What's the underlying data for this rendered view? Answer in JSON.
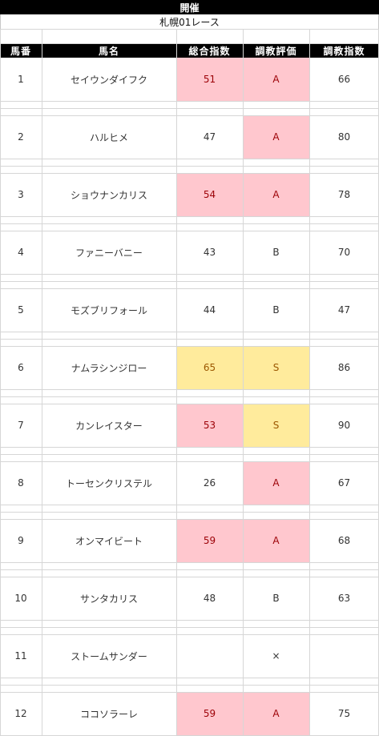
{
  "header": {
    "title": "開催",
    "subtitle": "札幌01レース"
  },
  "columns": [
    "馬番",
    "馬名",
    "総合指数",
    "調教評価",
    "調教指数"
  ],
  "highlight_colors": {
    "pink": "#ffc7ce",
    "yellow": "#ffeb9c"
  },
  "rows": [
    {
      "no": "1",
      "name": "セイウンダイフク",
      "total": "51",
      "eval": "A",
      "train": "66",
      "total_hl": "pink",
      "eval_hl": "pink"
    },
    {
      "no": "2",
      "name": "ハルヒメ",
      "total": "47",
      "eval": "A",
      "train": "80",
      "total_hl": "",
      "eval_hl": "pink"
    },
    {
      "no": "3",
      "name": "ショウナンカリス",
      "total": "54",
      "eval": "A",
      "train": "78",
      "total_hl": "pink",
      "eval_hl": "pink"
    },
    {
      "no": "4",
      "name": "ファニーバニー",
      "total": "43",
      "eval": "B",
      "train": "70",
      "total_hl": "",
      "eval_hl": ""
    },
    {
      "no": "5",
      "name": "モズブリフォール",
      "total": "44",
      "eval": "B",
      "train": "47",
      "total_hl": "",
      "eval_hl": ""
    },
    {
      "no": "6",
      "name": "ナムラシンジロー",
      "total": "65",
      "eval": "S",
      "train": "86",
      "total_hl": "yellow",
      "eval_hl": "yellow"
    },
    {
      "no": "7",
      "name": "カンレイスター",
      "total": "53",
      "eval": "S",
      "train": "90",
      "total_hl": "pink",
      "eval_hl": "yellow"
    },
    {
      "no": "8",
      "name": "トーセンクリステル",
      "total": "26",
      "eval": "A",
      "train": "67",
      "total_hl": "",
      "eval_hl": "pink"
    },
    {
      "no": "9",
      "name": "オンマイビート",
      "total": "59",
      "eval": "A",
      "train": "68",
      "total_hl": "pink",
      "eval_hl": "pink"
    },
    {
      "no": "10",
      "name": "サンタカリス",
      "total": "48",
      "eval": "B",
      "train": "63",
      "total_hl": "",
      "eval_hl": ""
    },
    {
      "no": "11",
      "name": "ストームサンダー",
      "total": "",
      "eval": "×",
      "train": "",
      "total_hl": "",
      "eval_hl": ""
    },
    {
      "no": "12",
      "name": "ココソラーレ",
      "total": "59",
      "eval": "A",
      "train": "75",
      "total_hl": "pink",
      "eval_hl": "pink"
    }
  ]
}
